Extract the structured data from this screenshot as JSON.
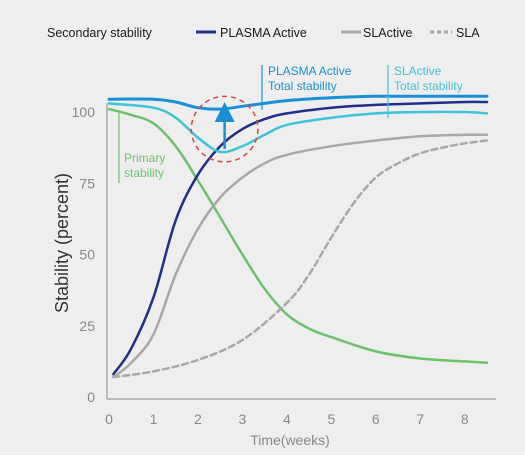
{
  "chart_data": {
    "type": "line",
    "xlabel": "Time(weeks)",
    "ylabel": "Stability (percent)",
    "xlim": [
      0,
      8.5
    ],
    "ylim": [
      0,
      105
    ],
    "x_ticks": [
      0,
      1,
      2,
      3,
      4,
      5,
      6,
      7,
      8
    ],
    "y_ticks": [
      0,
      25,
      50,
      75,
      100
    ],
    "grid": false,
    "legend_position": "top",
    "legend": {
      "title": "Secondary stability",
      "entries": [
        {
          "label": "PLASMA Active",
          "series": "plasma_secondary"
        },
        {
          "label": "SLActive",
          "series": "slactive_secondary"
        },
        {
          "label": "SLA",
          "series": "sla_secondary"
        }
      ]
    },
    "annotations": {
      "plasma_total": [
        "PLASMA Active",
        "Total stability"
      ],
      "slactive_total": [
        "SLActive",
        "Total stability"
      ],
      "primary": [
        "Primary",
        "stability"
      ]
    },
    "colors": {
      "plasma_secondary": "#1e2f8c",
      "slactive_secondary": "#a8a8a8",
      "sla_secondary": "#a8a8a8",
      "plasma_total": "#1a8fd6",
      "slactive_total": "#3fc3d9",
      "primary": "#6cc26b",
      "highlight": "#e0463c",
      "arrow": "#1a8fd6"
    },
    "series": [
      {
        "key": "primary",
        "dashed": false,
        "points": [
          [
            0,
            101
          ],
          [
            0.5,
            99
          ],
          [
            1,
            96
          ],
          [
            1.5,
            88
          ],
          [
            2,
            76
          ],
          [
            2.5,
            63
          ],
          [
            3,
            50
          ],
          [
            3.5,
            38
          ],
          [
            4,
            29
          ],
          [
            4.5,
            24
          ],
          [
            5,
            21
          ],
          [
            6,
            16
          ],
          [
            7,
            13.5
          ],
          [
            8,
            12.5
          ],
          [
            8.5,
            12
          ]
        ]
      },
      {
        "key": "plasma_secondary",
        "dashed": false,
        "points": [
          [
            0.1,
            8
          ],
          [
            0.5,
            17
          ],
          [
            1,
            35
          ],
          [
            1.5,
            62
          ],
          [
            2,
            78
          ],
          [
            2.5,
            88
          ],
          [
            3,
            94
          ],
          [
            3.5,
            97.5
          ],
          [
            4,
            99.5
          ],
          [
            5,
            101.5
          ],
          [
            6,
            102.5
          ],
          [
            7,
            103
          ],
          [
            8,
            103.5
          ],
          [
            8.5,
            103.5
          ]
        ]
      },
      {
        "key": "slactive_secondary",
        "dashed": false,
        "points": [
          [
            0.1,
            7
          ],
          [
            0.5,
            12
          ],
          [
            1,
            22
          ],
          [
            1.5,
            43
          ],
          [
            2,
            59
          ],
          [
            2.5,
            70
          ],
          [
            3,
            77
          ],
          [
            3.5,
            82
          ],
          [
            4,
            85
          ],
          [
            5,
            88
          ],
          [
            6,
            90
          ],
          [
            7,
            91.5
          ],
          [
            8,
            92
          ],
          [
            8.5,
            92
          ]
        ]
      },
      {
        "key": "sla_secondary",
        "dashed": true,
        "points": [
          [
            0.1,
            7
          ],
          [
            1,
            9
          ],
          [
            2,
            13
          ],
          [
            3,
            20
          ],
          [
            4,
            33
          ],
          [
            4.5,
            43
          ],
          [
            5,
            56
          ],
          [
            5.5,
            68
          ],
          [
            6,
            77
          ],
          [
            6.5,
            82
          ],
          [
            7,
            85.5
          ],
          [
            7.5,
            87.5
          ],
          [
            8,
            89
          ],
          [
            8.5,
            90
          ]
        ]
      },
      {
        "key": "slactive_total",
        "dashed": false,
        "points": [
          [
            0,
            103
          ],
          [
            1,
            101.5
          ],
          [
            1.5,
            98
          ],
          [
            2,
            91
          ],
          [
            2.5,
            86
          ],
          [
            3,
            88
          ],
          [
            3.5,
            92
          ],
          [
            4,
            95.5
          ],
          [
            5,
            98
          ],
          [
            6,
            99.5
          ],
          [
            7,
            100
          ],
          [
            8,
            100
          ],
          [
            8.5,
            99.5
          ]
        ]
      },
      {
        "key": "plasma_total",
        "dashed": false,
        "points": [
          [
            0,
            104.5
          ],
          [
            1,
            104.5
          ],
          [
            1.5,
            103.5
          ],
          [
            2,
            101.5
          ],
          [
            2.5,
            101
          ],
          [
            3,
            102
          ],
          [
            3.5,
            103
          ],
          [
            4,
            104
          ],
          [
            5,
            105
          ],
          [
            6,
            105.5
          ],
          [
            7,
            105.5
          ],
          [
            8,
            105.5
          ],
          [
            8.5,
            105.5
          ]
        ]
      }
    ],
    "highlight_circle": {
      "x": 2.6,
      "y": 94,
      "rx": 0.75,
      "ry": 11.5
    },
    "arrow": {
      "x": 2.6,
      "from": 87,
      "to": 100
    }
  }
}
